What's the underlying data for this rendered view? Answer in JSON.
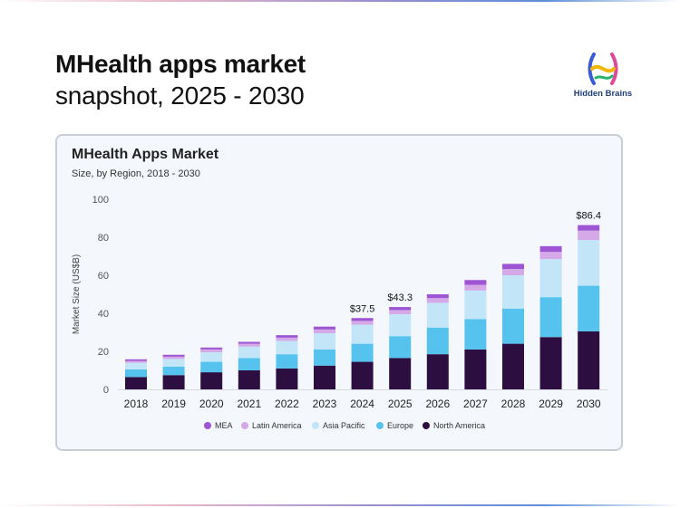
{
  "header": {
    "title": "MHealth apps market",
    "subtitle": "snapshot, 2025 - 2030"
  },
  "logo": {
    "text": "Hidden Brains",
    "icon": "hidden-brains-logo-icon"
  },
  "colors": {
    "mea": "#9e55d3",
    "latin_america": "#d5a9e8",
    "asia_pacific": "#c2e6f7",
    "europe": "#56c3ef",
    "north_america": "#2d0e40"
  },
  "chart_data": {
    "type": "bar",
    "stacked": true,
    "title": "MHealth Apps Market",
    "subtitle": "Size, by Region, 2018 - 2030",
    "ylabel": "Market Size (US$B)",
    "xlabel": "",
    "ylim": [
      0,
      100
    ],
    "yticks": [
      0,
      20,
      40,
      60,
      80,
      100
    ],
    "grid": false,
    "legend_position": "bottom",
    "categories": [
      "2018",
      "2019",
      "2020",
      "2021",
      "2022",
      "2023",
      "2024",
      "2025",
      "2026",
      "2027",
      "2028",
      "2029",
      "2030"
    ],
    "series": [
      {
        "name": "North America",
        "color": "#2d0e40",
        "values": [
          6.5,
          7.5,
          9.0,
          10.0,
          11.0,
          12.5,
          14.5,
          16.5,
          18.5,
          21.0,
          24.0,
          27.5,
          30.5
        ]
      },
      {
        "name": "Europe",
        "color": "#56c3ef",
        "values": [
          4.0,
          4.5,
          5.5,
          6.5,
          7.5,
          8.5,
          9.5,
          11.5,
          14.0,
          16.0,
          18.5,
          21.0,
          24.0
        ]
      },
      {
        "name": "Asia Pacific",
        "color": "#c2e6f7",
        "values": [
          3.5,
          4.0,
          5.0,
          6.0,
          7.0,
          8.5,
          10.0,
          11.5,
          13.0,
          15.0,
          17.5,
          20.0,
          24.0
        ]
      },
      {
        "name": "Latin America",
        "color": "#d5a9e8",
        "values": [
          1.0,
          1.2,
          1.5,
          1.5,
          1.7,
          2.0,
          2.0,
          2.2,
          2.5,
          3.0,
          3.3,
          3.8,
          5.0
        ]
      },
      {
        "name": "MEA",
        "color": "#9e55d3",
        "values": [
          0.8,
          1.0,
          1.0,
          1.0,
          1.3,
          1.5,
          1.5,
          1.6,
          2.0,
          2.5,
          2.7,
          3.0,
          2.9
        ]
      }
    ],
    "annotations": [
      {
        "category": "2024",
        "label": "$37.5",
        "value": 37.5
      },
      {
        "category": "2025",
        "label": "$43.3",
        "value": 43.3
      },
      {
        "category": "2030",
        "label": "$86.4",
        "value": 86.4
      }
    ]
  }
}
